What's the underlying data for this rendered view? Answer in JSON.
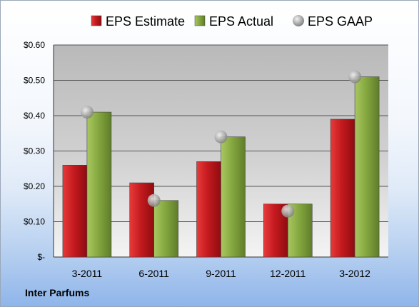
{
  "chart_data": {
    "type": "bar",
    "categories": [
      "3-2011",
      "6-2011",
      "9-2011",
      "12-2011",
      "3-2012"
    ],
    "series": [
      {
        "name": "EPS Estimate",
        "type": "bar",
        "color": "#c0161e",
        "values": [
          0.26,
          0.21,
          0.27,
          0.15,
          0.39
        ]
      },
      {
        "name": "EPS Actual",
        "type": "bar",
        "color": "#86a840",
        "values": [
          0.41,
          0.16,
          0.34,
          0.15,
          0.51
        ]
      },
      {
        "name": "EPS GAAP",
        "type": "scatter",
        "color": "#9a9a9a",
        "values": [
          0.41,
          0.16,
          0.34,
          0.13,
          0.51
        ]
      }
    ],
    "ylim": [
      0,
      0.6
    ],
    "yticks": [
      0,
      0.1,
      0.2,
      0.3,
      0.4,
      0.5,
      0.6
    ],
    "ytick_labels": [
      "$-",
      "$0.10",
      "$0.20",
      "$0.30",
      "$0.40",
      "$0.50",
      "$0.60"
    ],
    "grid": true,
    "legend_position": "top"
  },
  "footer": {
    "company": "Inter Parfums"
  }
}
